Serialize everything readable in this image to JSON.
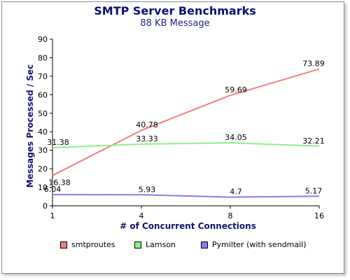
{
  "chart_data": {
    "type": "line",
    "title": "SMTP Server Benchmarks",
    "subtitle": "88 KB Message",
    "xlabel": "# of Concurrent Connections",
    "ylabel": "Messages Processed / Sec",
    "categories": [
      "1",
      "4",
      "8",
      "16"
    ],
    "ylim": [
      0,
      90
    ],
    "yticks": [
      0,
      10,
      20,
      30,
      40,
      50,
      60,
      70,
      80,
      90
    ],
    "grid": false,
    "legend_position": "bottom",
    "series": [
      {
        "name": "smtproutes",
        "color": "#f08080",
        "marker": "#f27f7f",
        "values": [
          16.38,
          40.78,
          59.69,
          73.89
        ],
        "labels": [
          "16.38",
          "40.78",
          "59.69",
          "73.89"
        ]
      },
      {
        "name": "Lamson",
        "color": "#90ee90",
        "marker": "#7ff27f",
        "values": [
          31.38,
          33.33,
          34.05,
          32.21
        ],
        "labels": [
          "31.38",
          "33.33",
          "34.05",
          "32.21"
        ]
      },
      {
        "name": "Pymilter (with sendmail)",
        "color": "#8080f0",
        "marker": "#7f7ff2",
        "values": [
          6.04,
          5.93,
          4.7,
          5.17
        ],
        "labels": [
          "6.04",
          "5.93",
          "4.7",
          "5.17"
        ]
      }
    ]
  }
}
